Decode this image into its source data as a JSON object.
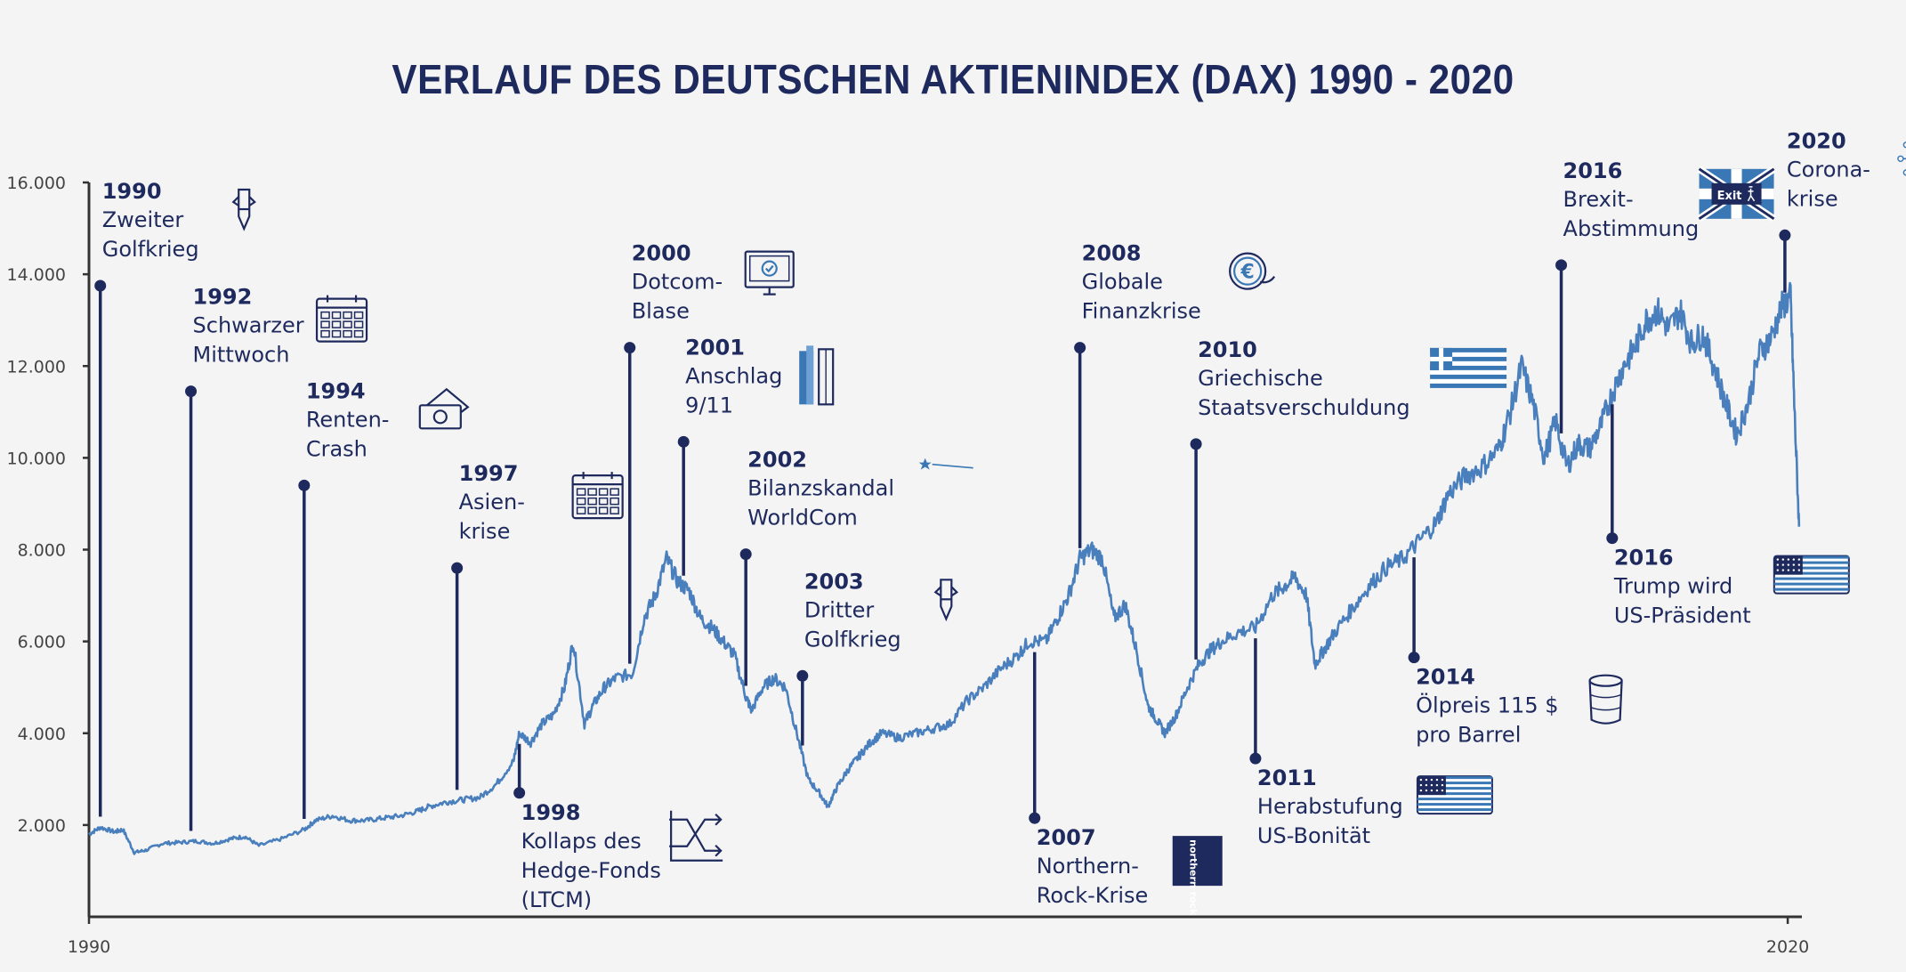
{
  "colors": {
    "background": "#f4f4f4",
    "navy": "#1e2a5e",
    "line": "#4a7fbd",
    "axis": "#333333",
    "icon_blue": "#3a78b5"
  },
  "chart_data": {
    "type": "line",
    "title": "VERLAUF DES DEUTSCHEN AKTIENINDEX (DAX) 1990 - 2020",
    "xlabel": "",
    "ylabel": "",
    "xlim": [
      1990,
      2020.25
    ],
    "ylim": [
      0,
      16000
    ],
    "x_ticks": [
      {
        "value": 1990,
        "label": "1990"
      },
      {
        "value": 2020,
        "label": "2020"
      }
    ],
    "y_ticks": [
      {
        "value": 2000,
        "label": "2.000"
      },
      {
        "value": 4000,
        "label": "4.000"
      },
      {
        "value": 6000,
        "label": "6.000"
      },
      {
        "value": 8000,
        "label": "8.000"
      },
      {
        "value": 10000,
        "label": "10.000"
      },
      {
        "value": 12000,
        "label": "12.000"
      },
      {
        "value": 14000,
        "label": "14.000"
      },
      {
        "value": 16000,
        "label": "16.000"
      }
    ],
    "grid": false,
    "legend": "none",
    "series": [
      {
        "x": [
          1990.0,
          1990.2,
          1990.45,
          1990.6,
          1990.8,
          1991.0,
          1991.3,
          1991.6,
          1991.9,
          1992.2,
          1992.5,
          1992.75,
          1993.0,
          1993.4,
          1993.8,
          1994.0,
          1994.3,
          1994.6,
          1994.9,
          1995.2,
          1995.5,
          1995.8,
          1996.0,
          1996.3,
          1996.6,
          1996.9,
          1997.2,
          1997.5,
          1997.6,
          1997.8,
          1998.0,
          1998.2,
          1998.4,
          1998.55,
          1998.75,
          1998.9,
          1999.1,
          1999.3,
          1999.6,
          1999.8,
          2000.0,
          2000.2,
          2000.4,
          2000.6,
          2000.8,
          2001.0,
          2001.2,
          2001.4,
          2001.6,
          2001.7,
          2001.9,
          2002.1,
          2002.3,
          2002.5,
          2002.7,
          2002.9,
          2003.05,
          2003.2,
          2003.4,
          2003.6,
          2003.8,
          2004.0,
          2004.3,
          2004.6,
          2004.9,
          2005.2,
          2005.5,
          2005.8,
          2006.1,
          2006.4,
          2006.6,
          2006.9,
          2007.1,
          2007.3,
          2007.5,
          2007.7,
          2007.9,
          2008.1,
          2008.3,
          2008.5,
          2008.7,
          2008.85,
          2009.0,
          2009.2,
          2009.4,
          2009.6,
          2009.8,
          2010.0,
          2010.3,
          2010.6,
          2010.9,
          2011.1,
          2011.3,
          2011.5,
          2011.65,
          2011.8,
          2012.0,
          2012.3,
          2012.6,
          2012.9,
          2013.2,
          2013.5,
          2013.8,
          2014.0,
          2014.3,
          2014.6,
          2014.9,
          2015.1,
          2015.3,
          2015.5,
          2015.7,
          2015.9,
          2016.1,
          2016.3,
          2016.5,
          2016.7,
          2016.9,
          2017.1,
          2017.3,
          2017.5,
          2017.7,
          2017.9,
          2018.1,
          2018.3,
          2018.5,
          2018.7,
          2018.9,
          2019.1,
          2019.3,
          2019.5,
          2019.7,
          2019.9,
          2020.05,
          2020.12,
          2020.2
        ],
        "y": [
          1800,
          1950,
          1850,
          1900,
          1400,
          1450,
          1600,
          1620,
          1650,
          1600,
          1700,
          1750,
          1550,
          1700,
          1900,
          2100,
          2200,
          2100,
          2100,
          2150,
          2200,
          2300,
          2400,
          2500,
          2550,
          2600,
          2900,
          3400,
          4000,
          3800,
          4200,
          4400,
          5000,
          6000,
          4200,
          4600,
          5000,
          5200,
          5300,
          6500,
          7000,
          7800,
          7300,
          7100,
          6500,
          6300,
          6000,
          5700,
          4800,
          4500,
          5000,
          5200,
          5000,
          4000,
          3000,
          2700,
          2400,
          2800,
          3200,
          3500,
          3800,
          4000,
          3900,
          4000,
          4100,
          4200,
          4700,
          5000,
          5400,
          5700,
          6000,
          6000,
          6500,
          7000,
          7800,
          8000,
          7800,
          6500,
          6800,
          5800,
          4600,
          4300,
          4000,
          4400,
          5000,
          5500,
          5800,
          6000,
          6200,
          6300,
          7000,
          7200,
          7400,
          7000,
          5500,
          5800,
          6200,
          6700,
          7200,
          7600,
          7800,
          8200,
          8600,
          9200,
          9600,
          9800,
          10200,
          11000,
          12000,
          11200,
          10000,
          10800,
          9800,
          10300,
          10200,
          10700,
          11400,
          12000,
          12400,
          13000,
          13200,
          12800,
          13200,
          12500,
          12700,
          12000,
          11200,
          10500,
          11200,
          12300,
          12600,
          13300,
          13500,
          11000,
          8500
        ]
      }
    ],
    "annotations": [
      {
        "year": "1990",
        "lines": [
          "Zweiter",
          "Golfkrieg"
        ],
        "event_x": 1990.2,
        "marker_value": 13750,
        "icon": "rocket-icon"
      },
      {
        "year": "1992",
        "lines": [
          "Schwarzer",
          "Mittwoch"
        ],
        "event_x": 1991.8,
        "marker_value": 11450,
        "icon": "calendar-icon"
      },
      {
        "year": "1994",
        "lines": [
          "Renten-",
          "Crash"
        ],
        "event_x": 1993.8,
        "marker_value": 9400,
        "icon": "money-icon"
      },
      {
        "year": "1997",
        "lines": [
          "Asien-",
          "krise"
        ],
        "event_x": 1996.5,
        "marker_value": 7600,
        "icon": "calendar-icon"
      },
      {
        "year": "1998",
        "lines": [
          "Kollaps des",
          "Hedge-Fonds",
          "(LTCM)"
        ],
        "event_x": 1997.6,
        "marker_value": 2700,
        "icon": "crossing-arrows-icon"
      },
      {
        "year": "2000",
        "lines": [
          "Dotcom-",
          "Blase"
        ],
        "event_x": 1999.55,
        "marker_value": 12400,
        "icon": "monitor-icon"
      },
      {
        "year": "2001",
        "lines": [
          "Anschlag",
          "9/11"
        ],
        "event_x": 2000.5,
        "marker_value": 10350,
        "icon": "towers-icon"
      },
      {
        "year": "2002",
        "lines": [
          "Bilanzskandal",
          "WorldCom"
        ],
        "event_x": 2001.6,
        "marker_value": 7900,
        "icon": "star-icon"
      },
      {
        "year": "2003",
        "lines": [
          "Dritter",
          "Golfkrieg"
        ],
        "event_x": 2002.6,
        "marker_value": 5250,
        "icon": "rocket-icon"
      },
      {
        "year": "2007",
        "lines": [
          "Northern-",
          "Rock-Krise"
        ],
        "event_x": 2006.7,
        "marker_value": 2150,
        "icon": "northern-rock-logo-icon"
      },
      {
        "year": "2008",
        "lines": [
          "Globale",
          "Finanzkrise"
        ],
        "event_x": 2007.5,
        "marker_value": 12400,
        "icon": "euro-coin-icon"
      },
      {
        "year": "2010",
        "lines": [
          "Griechische",
          "Staatsverschuldung"
        ],
        "event_x": 2009.55,
        "marker_value": 10300,
        "icon": "greek-flag-icon"
      },
      {
        "year": "2011",
        "lines": [
          "Herabstufung",
          "US-Bonität"
        ],
        "event_x": 2010.6,
        "marker_value": 3450,
        "icon": "us-flag-icon"
      },
      {
        "year": "2014",
        "lines": [
          "Ölpreis 115 $",
          "pro Barrel"
        ],
        "event_x": 2013.4,
        "marker_value": 5650,
        "icon": "oil-barrel-icon"
      },
      {
        "year": "2016",
        "lines": [
          "Brexit-",
          "Abstimmung"
        ],
        "event_x": 2016.0,
        "marker_value": 14200,
        "icon": "uk-exit-flag-icon"
      },
      {
        "year": "2016",
        "lines": [
          "Trump wird",
          "US-Präsident"
        ],
        "event_x": 2016.9,
        "marker_value": 8250,
        "icon": "us-flag-icon"
      },
      {
        "year": "2020",
        "lines": [
          "Corona-",
          "krise"
        ],
        "event_x": 2019.95,
        "marker_value": 14850,
        "icon": "virus-icon"
      }
    ]
  },
  "icon_texts": {
    "exit_sign": "Exit",
    "northern_rock_logo": "northern rock"
  }
}
